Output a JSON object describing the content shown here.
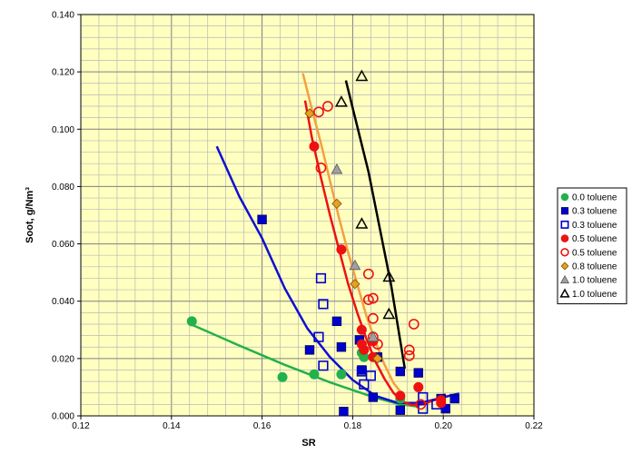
{
  "chart_data": {
    "type": "scatter",
    "title": "",
    "xlabel": "SR",
    "ylabel": "Soot, g/Nm³",
    "xlim": [
      0.12,
      0.22
    ],
    "ylim": [
      0.0,
      0.14
    ],
    "x_ticks": [
      "0.12",
      "0.14",
      "0.16",
      "0.18",
      "0.20",
      "0.22"
    ],
    "y_ticks": [
      "0.000",
      "0.020",
      "0.040",
      "0.060",
      "0.080",
      "0.100",
      "0.120",
      "0.140"
    ],
    "grid": true,
    "legend_position": "right",
    "plot_background": "#ffffc0",
    "series": [
      {
        "name": "0.0 toluene",
        "marker": "circle-filled",
        "color": "#22b14c",
        "points": [
          [
            0.1445,
            0.033
          ],
          [
            0.1645,
            0.0135
          ],
          [
            0.1715,
            0.0145
          ],
          [
            0.1775,
            0.0145
          ],
          [
            0.182,
            0.022
          ],
          [
            0.1825,
            0.0205
          ],
          [
            0.1905,
            0.006
          ]
        ]
      },
      {
        "name": "0.3 toluene",
        "marker": "square-filled",
        "color": "#0000cc",
        "points": [
          [
            0.16,
            0.0685
          ],
          [
            0.1705,
            0.023
          ],
          [
            0.1765,
            0.033
          ],
          [
            0.1775,
            0.024
          ],
          [
            0.178,
            0.0015
          ],
          [
            0.1815,
            0.0265
          ],
          [
            0.182,
            0.016
          ],
          [
            0.1845,
            0.0065
          ],
          [
            0.1855,
            0.0205
          ],
          [
            0.1905,
            0.0155
          ],
          [
            0.1945,
            0.015
          ],
          [
            0.1905,
            0.002
          ],
          [
            0.1995,
            0.006
          ],
          [
            0.2005,
            0.0025
          ],
          [
            0.2025,
            0.006
          ]
        ]
      },
      {
        "name": "0.3 toluene",
        "marker": "square-open",
        "color": "#0000cc",
        "points": [
          [
            0.173,
            0.048
          ],
          [
            0.1735,
            0.039
          ],
          [
            0.1725,
            0.0275
          ],
          [
            0.1735,
            0.0175
          ],
          [
            0.182,
            0.0155
          ],
          [
            0.1825,
            0.011
          ],
          [
            0.184,
            0.014
          ],
          [
            0.1955,
            0.0065
          ],
          [
            0.1955,
            0.0025
          ],
          [
            0.1985,
            0.004
          ]
        ]
      },
      {
        "name": "0.5 toluene",
        "marker": "circle-filled",
        "color": "#ee1111",
        "points": [
          [
            0.1715,
            0.094
          ],
          [
            0.1775,
            0.058
          ],
          [
            0.182,
            0.03
          ],
          [
            0.182,
            0.025
          ],
          [
            0.1825,
            0.023
          ],
          [
            0.1845,
            0.026
          ],
          [
            0.1845,
            0.0205
          ],
          [
            0.1905,
            0.007
          ],
          [
            0.1945,
            0.01
          ],
          [
            0.1995,
            0.0045
          ],
          [
            0.1995,
            0.0055
          ]
        ]
      },
      {
        "name": "0.5 toluene",
        "marker": "circle-open",
        "color": "#ee1111",
        "points": [
          [
            0.1725,
            0.106
          ],
          [
            0.1745,
            0.108
          ],
          [
            0.173,
            0.0865
          ],
          [
            0.1835,
            0.0495
          ],
          [
            0.1835,
            0.0405
          ],
          [
            0.1845,
            0.041
          ],
          [
            0.1845,
            0.034
          ],
          [
            0.1845,
            0.0275
          ],
          [
            0.1855,
            0.025
          ],
          [
            0.1925,
            0.023
          ],
          [
            0.1925,
            0.021
          ],
          [
            0.1935,
            0.032
          ],
          [
            0.195,
            0.004
          ]
        ]
      },
      {
        "name": "0.8 toluene",
        "marker": "diamond-filled",
        "color": "#e8a020",
        "points": [
          [
            0.1705,
            0.1055
          ],
          [
            0.1765,
            0.074
          ],
          [
            0.1805,
            0.046
          ],
          [
            0.1855,
            0.02
          ]
        ]
      },
      {
        "name": "1.0 toluene",
        "marker": "triangle-filled",
        "color": "#a0a0a0",
        "points": [
          [
            0.1765,
            0.086
          ],
          [
            0.1805,
            0.0525
          ],
          [
            0.1845,
            0.0275
          ]
        ]
      },
      {
        "name": "1.0 toluene",
        "marker": "triangle-open",
        "color": "#000000",
        "points": [
          [
            0.182,
            0.1185
          ],
          [
            0.1775,
            0.1095
          ],
          [
            0.182,
            0.067
          ],
          [
            0.188,
            0.0485
          ],
          [
            0.188,
            0.0355
          ]
        ]
      }
    ],
    "trend_lines": [
      {
        "color": "#22b14c",
        "points": [
          [
            0.1445,
            0.0318
          ],
          [
            0.155,
            0.0245
          ],
          [
            0.165,
            0.0178
          ],
          [
            0.175,
            0.0117
          ],
          [
            0.185,
            0.0063
          ],
          [
            0.19,
            0.0042
          ],
          [
            0.1945,
            0.0032
          ]
        ]
      },
      {
        "color": "#1010d0",
        "points": [
          [
            0.15,
            0.094
          ],
          [
            0.155,
            0.0765
          ],
          [
            0.16,
            0.062
          ],
          [
            0.165,
            0.0445
          ],
          [
            0.17,
            0.0305
          ],
          [
            0.175,
            0.0205
          ],
          [
            0.18,
            0.0125
          ],
          [
            0.185,
            0.007
          ],
          [
            0.19,
            0.0045
          ],
          [
            0.195,
            0.0045
          ],
          [
            0.2,
            0.0065
          ],
          [
            0.2035,
            0.0078
          ]
        ]
      },
      {
        "color": "#ee1111",
        "points": [
          [
            0.1695,
            0.11
          ],
          [
            0.171,
            0.097
          ],
          [
            0.173,
            0.083
          ],
          [
            0.175,
            0.07
          ],
          [
            0.177,
            0.058
          ],
          [
            0.179,
            0.046
          ],
          [
            0.181,
            0.036
          ],
          [
            0.183,
            0.027
          ],
          [
            0.185,
            0.019
          ],
          [
            0.187,
            0.013
          ],
          [
            0.189,
            0.008
          ],
          [
            0.191,
            0.005
          ],
          [
            0.193,
            0.0038
          ],
          [
            0.1955,
            0.004
          ],
          [
            0.198,
            0.0055
          ],
          [
            0.2005,
            0.0075
          ]
        ]
      },
      {
        "color": "#f4a040",
        "points": [
          [
            0.169,
            0.1195
          ],
          [
            0.171,
            0.107
          ],
          [
            0.173,
            0.095
          ],
          [
            0.175,
            0.082
          ],
          [
            0.177,
            0.069
          ],
          [
            0.179,
            0.057
          ],
          [
            0.181,
            0.046
          ],
          [
            0.183,
            0.035
          ],
          [
            0.185,
            0.026
          ],
          [
            0.187,
            0.018
          ],
          [
            0.189,
            0.0115
          ],
          [
            0.1915,
            0.0065
          ]
        ]
      },
      {
        "color": "#000000",
        "points": [
          [
            0.1785,
            0.117
          ],
          [
            0.1835,
            0.085
          ],
          [
            0.1885,
            0.0455
          ],
          [
            0.1915,
            0.0165
          ]
        ]
      }
    ]
  }
}
